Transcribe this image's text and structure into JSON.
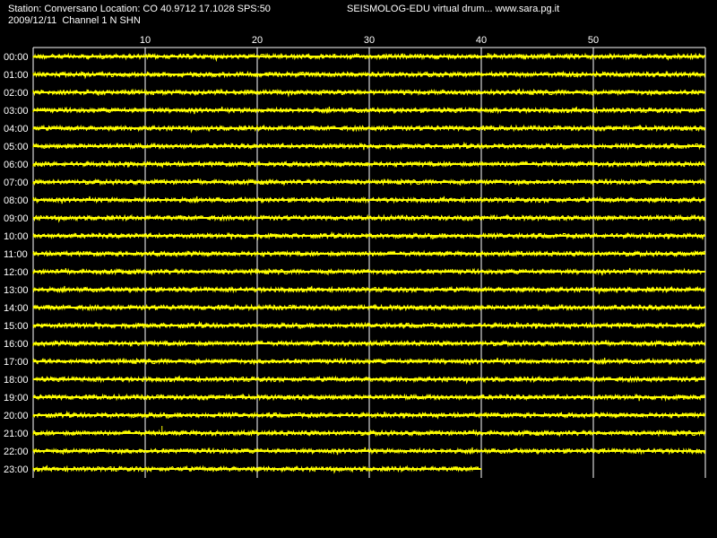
{
  "header": {
    "station_line": "Station: Conversano Location: CO 40.9712 17.1028 SPS:50",
    "date_line": "2009/12/11  Channel 1 N SHN",
    "app_line": "SEISMOLOG-EDU virtual drum... www.sara.pg.it"
  },
  "colors": {
    "background": "#000000",
    "trace": "#ffff00",
    "grid": "#ffffff",
    "text": "#ffffff"
  },
  "chart_data": {
    "type": "line",
    "title": "",
    "xlabel": "",
    "ylabel": "",
    "xlim": [
      0,
      60
    ],
    "xticks": [
      10,
      20,
      30,
      40,
      50
    ],
    "rows": [
      "00:00",
      "01:00",
      "02:00",
      "03:00",
      "04:00",
      "05:00",
      "06:00",
      "07:00",
      "08:00",
      "09:00",
      "10:00",
      "11:00",
      "12:00",
      "13:00",
      "14:00",
      "15:00",
      "16:00",
      "17:00",
      "18:00",
      "19:00",
      "20:00",
      "21:00",
      "22:00",
      "23:00"
    ],
    "row_end_minute": [
      60,
      60,
      60,
      60,
      60,
      60,
      60,
      60,
      60,
      60,
      60,
      60,
      60,
      60,
      60,
      60,
      60,
      60,
      60,
      60,
      60,
      60,
      60,
      40
    ],
    "grid": true,
    "series": [
      {
        "values": []
      }
    ]
  }
}
